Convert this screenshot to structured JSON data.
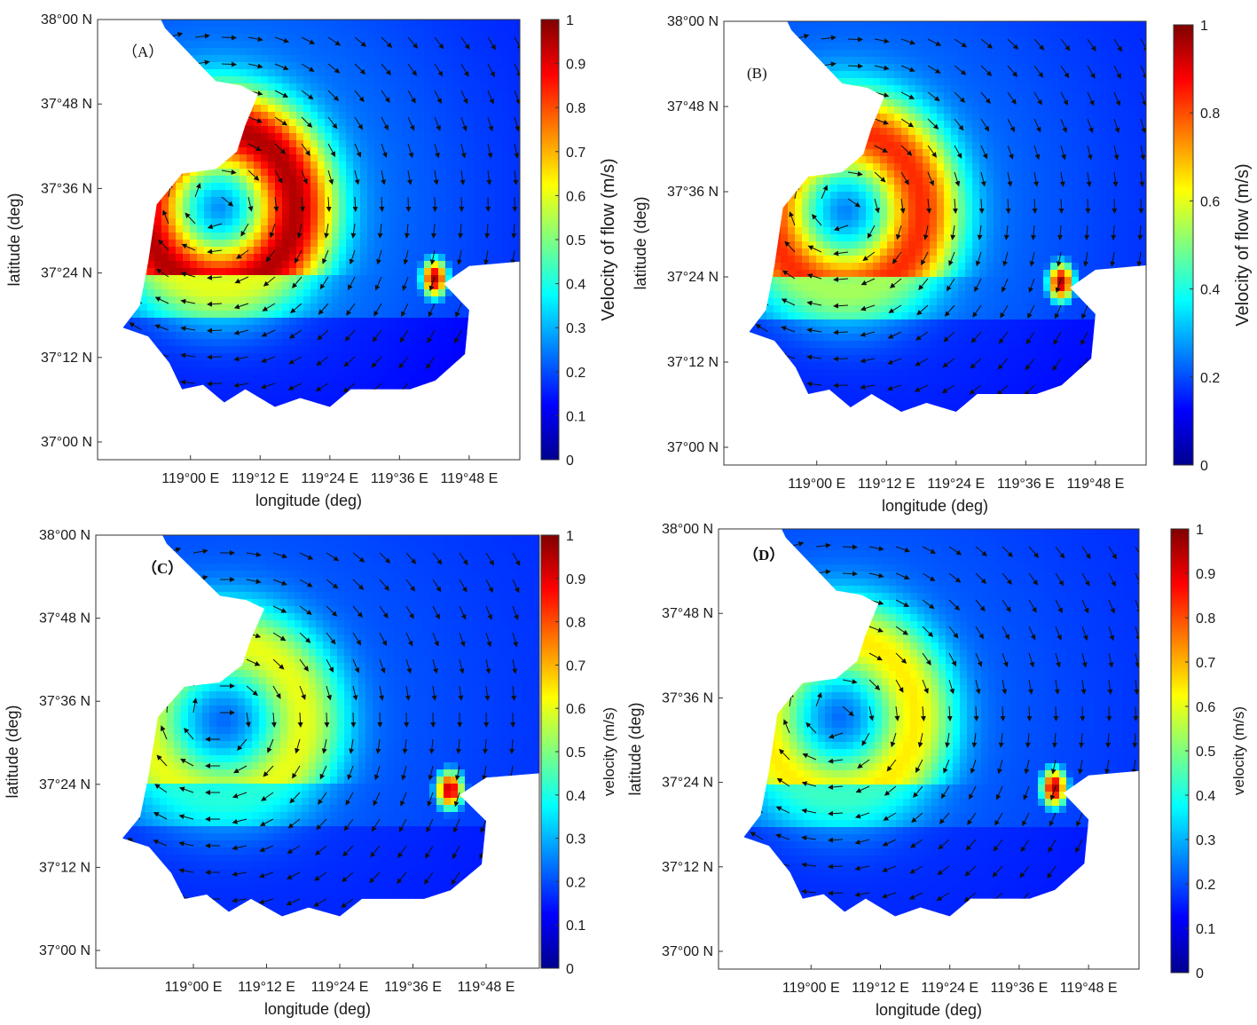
{
  "panels": [
    {
      "id": "A",
      "label": "（A）",
      "xlabel": "longitude (deg)",
      "ylabel": "latitude (deg)",
      "lat_ticks": [
        "38°00 N",
        "37°48 N",
        "37°36 N",
        "37°24 N",
        "37°12 N",
        "37°00 N"
      ],
      "lon_ticks": [
        "119°00 E",
        "119°12 E",
        "119°24 E",
        "119°36 E",
        "119°48 E"
      ],
      "colorbar": {
        "label": "Velocity of flow (m/s)",
        "ticks": [
          "1",
          "0.9",
          "0.8",
          "0.7",
          "0.6",
          "0.5",
          "0.4",
          "0.3",
          "0.2",
          "0.1",
          "0"
        ],
        "range": [
          0,
          1
        ],
        "colormap": "jet"
      },
      "field_intensity": 1.0
    },
    {
      "id": "B",
      "label": "(B)",
      "xlabel": "longitude (deg)",
      "ylabel": "latitude (deg)",
      "lat_ticks": [
        "38°00 N",
        "37°48 N",
        "37°36 N",
        "37°24 N",
        "37°12 N",
        "37°00 N"
      ],
      "lon_ticks": [
        "119°00 E",
        "119°12 E",
        "119°24 E",
        "119°36 E",
        "119°48 E"
      ],
      "colorbar": {
        "label": "Velocity of flow (m/s)",
        "ticks": [
          "1",
          "0.8",
          "0.6",
          "0.4",
          "0.2",
          "0"
        ],
        "range": [
          0,
          1
        ],
        "colormap": "jet"
      },
      "field_intensity": 0.85
    },
    {
      "id": "C",
      "label": "（C）",
      "xlabel": "longitude (deg)",
      "ylabel": "latitude (deg)",
      "lat_ticks": [
        "38°00 N",
        "37°48 N",
        "37°36 N",
        "37°24 N",
        "37°12 N",
        "37°00 N"
      ],
      "lon_ticks": [
        "119°00 E",
        "119°12 E",
        "119°24 E",
        "119°36 E",
        "119°48 E"
      ],
      "colorbar": {
        "label": "velocity (m/s)",
        "ticks": [
          "1",
          "0.9",
          "0.8",
          "0.7",
          "0.6",
          "0.5",
          "0.4",
          "0.3",
          "0.2",
          "0.1",
          "0"
        ],
        "range": [
          0,
          1
        ],
        "colormap": "jet"
      },
      "field_intensity": 0.55
    },
    {
      "id": "D",
      "label": "（D）",
      "xlabel": "longitude (deg)",
      "ylabel": "latitude (deg)",
      "lat_ticks": [
        "38°00 N",
        "37°48 N",
        "37°36 N",
        "37°24 N",
        "37°12 N",
        "37°00 N"
      ],
      "lon_ticks": [
        "119°00 E",
        "119°12 E",
        "119°24 E",
        "119°36 E",
        "119°48 E"
      ],
      "colorbar": {
        "label": "velocity (m/s)",
        "ticks": [
          "1",
          "0.9",
          "0.8",
          "0.7",
          "0.6",
          "0.5",
          "0.4",
          "0.3",
          "0.2",
          "0.1",
          "0"
        ],
        "range": [
          0,
          1
        ],
        "colormap": "jet"
      },
      "field_intensity": 0.6
    }
  ]
}
